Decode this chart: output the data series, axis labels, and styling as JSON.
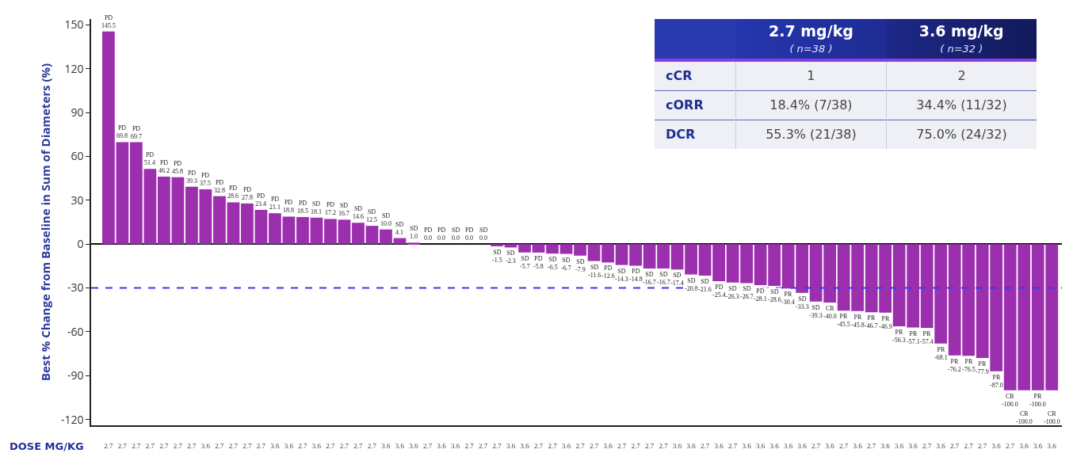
{
  "chart_data": [
    {
      "type": "bar",
      "ylabel": "Best % Change from Baseline in Sum of Diameters (%)",
      "xlabel": "DOSE MG/KG",
      "categories": [
        "2.7",
        "2.7",
        "2.7",
        "2.7",
        "2.7",
        "2.7",
        "2.7",
        "3.6",
        "2.7",
        "2.7",
        "2.7",
        "2.7",
        "3.6",
        "3.6",
        "2.7",
        "3.6",
        "2.7",
        "2.7",
        "2.7",
        "2.7",
        "3.6",
        "3.6",
        "3.6",
        "2.7",
        "3.6",
        "3.6",
        "2.7",
        "2.7",
        "2.7",
        "3.6",
        "3.6",
        "2.7",
        "2.7",
        "3.6",
        "2.7",
        "2.7",
        "3.6",
        "2.7",
        "2.7",
        "2.7",
        "2.7",
        "3.6",
        "3.6",
        "2.7",
        "3.6",
        "2.7",
        "3.6",
        "3.6",
        "3.6",
        "3.6",
        "3.6",
        "2.7",
        "3.6",
        "2.7",
        "3.6",
        "2.7",
        "3.6",
        "3.6",
        "3.6",
        "2.7",
        "3.6",
        "2.7",
        "2.7",
        "2.7",
        "3.6",
        "2.7",
        "3.6",
        "3.6",
        "3.6"
      ],
      "values": [
        145.5,
        69.8,
        69.7,
        51.4,
        46.2,
        45.8,
        39.3,
        37.5,
        32.8,
        28.6,
        27.8,
        23.4,
        21.1,
        18.8,
        18.5,
        18.1,
        17.2,
        16.7,
        14.6,
        12.5,
        10.0,
        4.1,
        1.0,
        0.0,
        0.0,
        0.0,
        0.0,
        0.0,
        -1.5,
        -2.3,
        -5.7,
        -5.8,
        -6.5,
        -6.7,
        -7.9,
        -11.6,
        -12.6,
        -14.3,
        -14.8,
        -16.7,
        -16.7,
        -17.4,
        -20.8,
        -21.6,
        -25.4,
        -26.3,
        -26.7,
        -28.1,
        -28.6,
        -30.4,
        -33.3,
        -39.3,
        -40.0,
        -45.5,
        -45.8,
        -46.7,
        -46.9,
        -56.3,
        -57.1,
        -57.4,
        -68.1,
        -76.2,
        -76.5,
        -77.9,
        -87.0,
        -100.0,
        -100.0,
        -100.0,
        -100.0
      ],
      "value_labels": [
        "PD\n145.5",
        "PD\n69.8",
        "PD\n69.7",
        "PD\n51.4",
        "PD\n46.2",
        "PD\n45.8",
        "PD\n39.3",
        "PD\n37.5",
        "PD\n32.8",
        "PD\n28.6",
        "PD\n27.8",
        "PD\n23.4",
        "PD\n21.1",
        "PD\n18.8",
        "PD\n18.5",
        "SD\n18.1",
        "PD\n17.2",
        "SD\n16.7",
        "SD\n14.6",
        "SD\n12.5",
        "SD\n10.0",
        "SD\n4.1",
        "SD\n1.0",
        "PD\n0.0",
        "PD\n0.0",
        "SD\n0.0",
        "PD\n0.0",
        "SD\n0.0",
        "SD\n-1.5",
        "SD\n-2.3",
        "SD\n-5.7",
        "PD\n-5.8",
        "SD\n-6.5",
        "SD\n-6.7",
        "SD\n-7.9",
        "SD\n-11.6",
        "PD\n-12.6",
        "SD\n-14.3",
        "PD\n-14.8",
        "SD\n-16.7",
        "SD\n-16.7",
        "SD\n-17.4",
        "SD\n-20.8",
        "SD\n-21.6",
        "PD\n-25.4",
        "SD\n-26.3",
        "SD\n-26.7",
        "PD\n-28.1",
        "SD\n-28.6",
        "PR\n-30.4",
        "SD\n-33.3",
        "SD\n-39.3",
        "CR\n-40.0",
        "PR\n-45.5",
        "PR\n-45.8",
        "PR\n-46.7",
        "PR\n-46.9",
        "PR\n-56.3",
        "PR\n-57.1",
        "PR\n-57.4",
        "PR\n-68.1",
        "PR\n-76.2",
        "PR\n-76.5",
        "PR\n-77.9",
        "PR\n-87.0",
        "CR\n-100.0",
        "CR\n-100.0",
        "PR\n-100.0",
        "CR\n-100.0"
      ],
      "color": "#9b2fae",
      "ylim": [
        -124,
        154
      ],
      "yticks": [
        -120,
        -90,
        -60,
        -30,
        0,
        30,
        60,
        90,
        120,
        150
      ],
      "ref_lines": [
        {
          "axis": "y",
          "value": -30,
          "color": "#3a3af0",
          "line_style": "dashed"
        }
      ]
    },
    {
      "type": "other",
      "categories": [
        "2.7 mg/kg",
        "3.6 mg/kg"
      ],
      "annotations": [
        "( n=38 )",
        "( n=32 )"
      ],
      "y_categories": [
        "cCR",
        "cORR",
        "DCR"
      ],
      "cell_labels": [
        [
          "1",
          "2"
        ],
        [
          "18.4% (7/38)",
          "34.4% (11/32)"
        ],
        [
          "55.3% (21/38)",
          "75.0% (24/32)"
        ]
      ]
    }
  ]
}
